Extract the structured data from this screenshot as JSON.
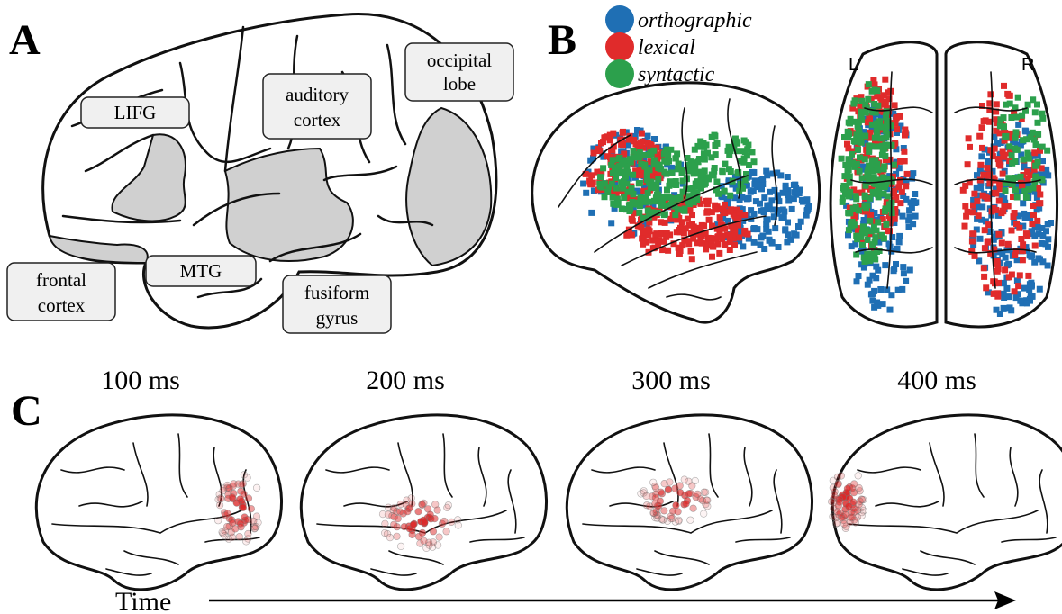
{
  "panel_a": {
    "label": "A",
    "regions": [
      {
        "lines": [
          "LIFG"
        ]
      },
      {
        "lines": [
          "auditory",
          "cortex"
        ]
      },
      {
        "lines": [
          "occipital",
          "lobe"
        ]
      },
      {
        "lines": [
          "frontal",
          "cortex"
        ]
      },
      {
        "lines": [
          "MTG"
        ]
      },
      {
        "lines": [
          "fusiform",
          "gyrus"
        ]
      }
    ]
  },
  "panel_b": {
    "label": "B",
    "legend": [
      {
        "name": "orthographic",
        "color": "#1f6fb4"
      },
      {
        "name": "lexical",
        "color": "#e02b2b"
      },
      {
        "name": "syntactic",
        "color": "#2ca04c"
      }
    ],
    "hemisphere_labels": [
      "L",
      "R"
    ]
  },
  "panel_c": {
    "label": "C",
    "times": [
      "100 ms",
      "200 ms",
      "300 ms",
      "400 ms"
    ],
    "axis_label": "Time"
  }
}
